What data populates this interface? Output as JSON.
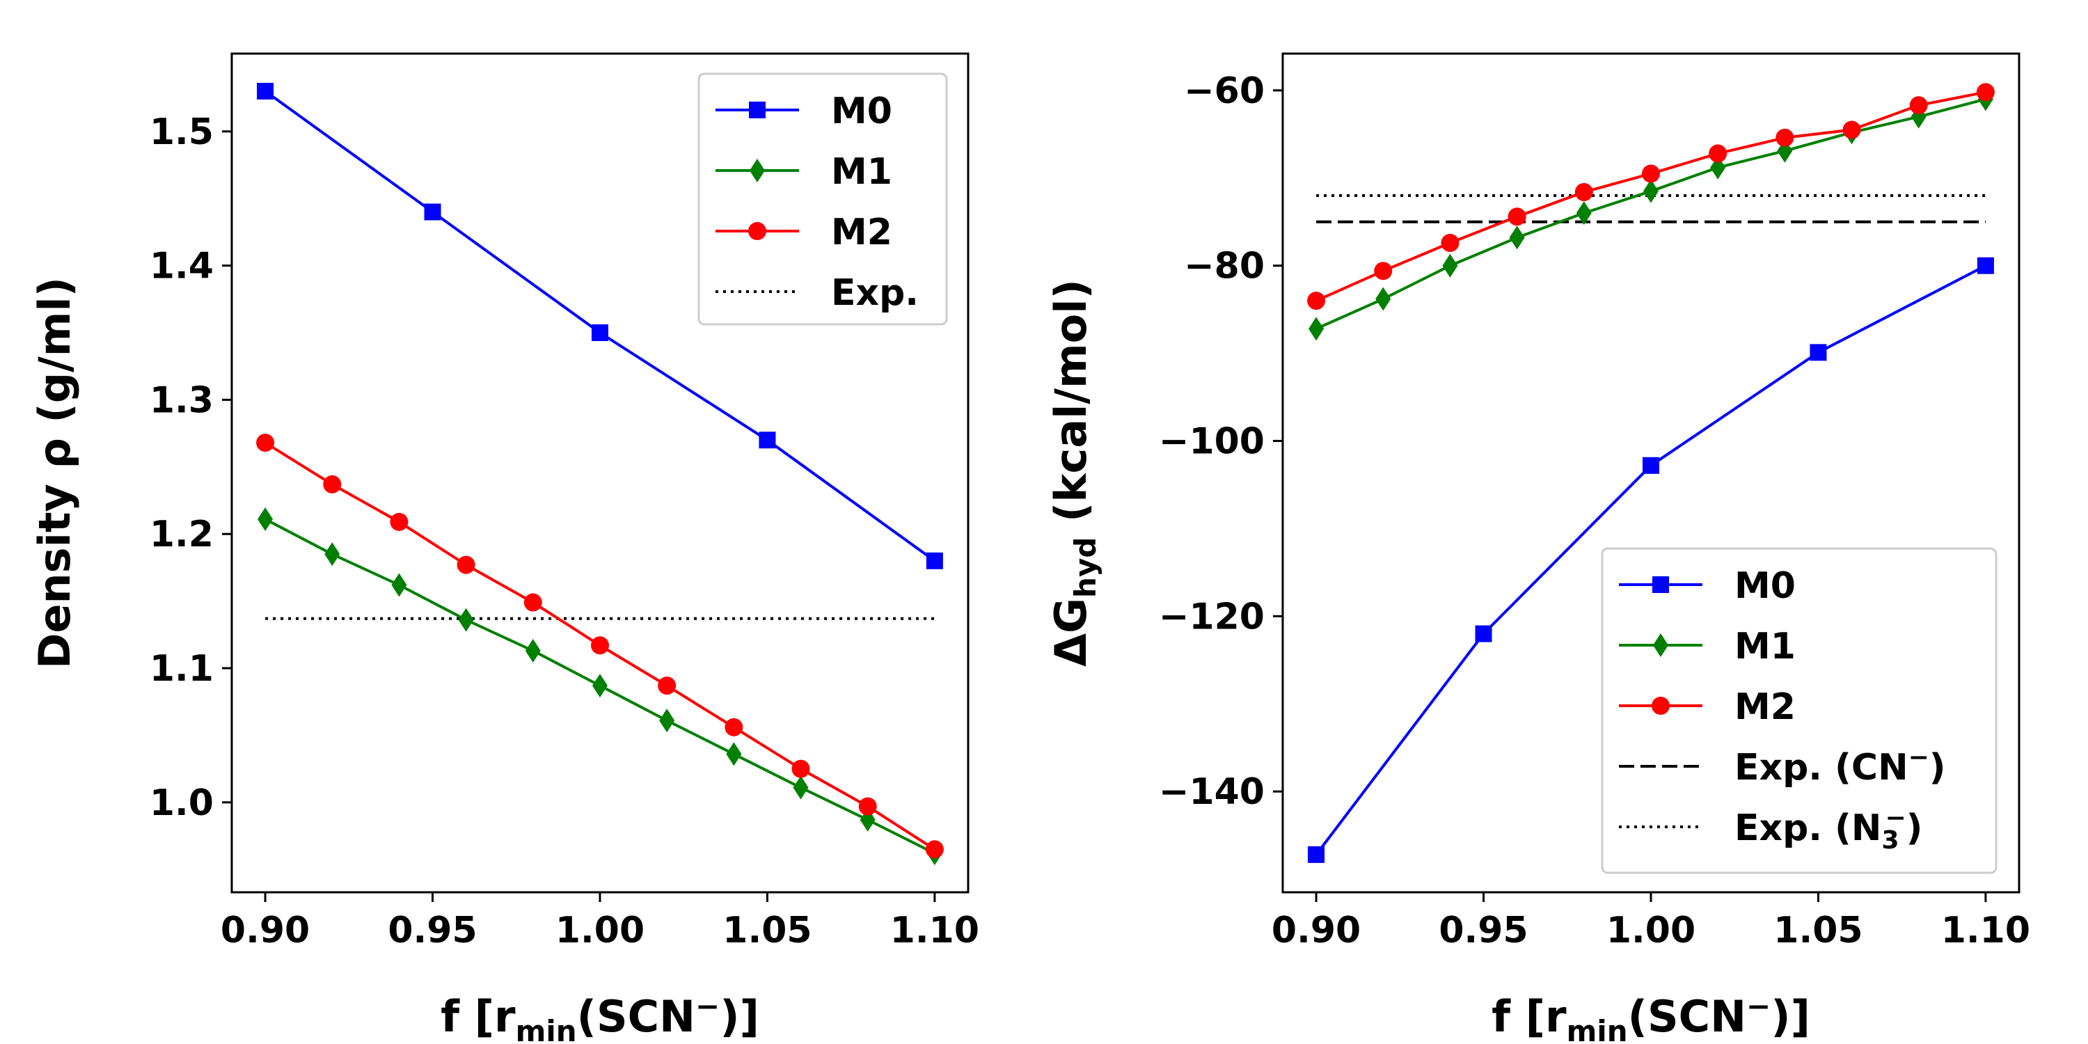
{
  "chart_data": [
    {
      "type": "line",
      "xlabel": {
        "main": "f [r",
        "sub": "min",
        "tail": "(SCN",
        "sup": "−",
        "close": ")]"
      },
      "ylabel": {
        "main": "Density ρ (g/ml)"
      },
      "xlim": [
        0.89,
        1.11
      ],
      "ylim": [
        0.933,
        1.558
      ],
      "xticks": [
        0.9,
        0.95,
        1.0,
        1.05,
        1.1
      ],
      "xtick_labels": [
        "0.90",
        "0.95",
        "1.00",
        "1.05",
        "1.10"
      ],
      "yticks": [
        1.0,
        1.1,
        1.2,
        1.3,
        1.4,
        1.5
      ],
      "ytick_labels": [
        "1.0",
        "1.1",
        "1.2",
        "1.3",
        "1.4",
        "1.5"
      ],
      "legend_position": "top-right",
      "series": [
        {
          "name": "M0",
          "color": "#0000ff",
          "marker": "square",
          "x": [
            0.9,
            0.95,
            1.0,
            1.05,
            1.1
          ],
          "y": [
            1.53,
            1.44,
            1.35,
            1.27,
            1.18
          ]
        },
        {
          "name": "M1",
          "color": "#008000",
          "marker": "diamond",
          "x": [
            0.9,
            0.92,
            0.94,
            0.96,
            0.98,
            1.0,
            1.02,
            1.04,
            1.06,
            1.08,
            1.1
          ],
          "y": [
            1.211,
            1.185,
            1.162,
            1.136,
            1.113,
            1.087,
            1.061,
            1.036,
            1.011,
            0.987,
            0.962
          ]
        },
        {
          "name": "M2",
          "color": "#ff0000",
          "marker": "circle",
          "x": [
            0.9,
            0.92,
            0.94,
            0.96,
            0.98,
            1.0,
            1.02,
            1.04,
            1.06,
            1.08,
            1.1
          ],
          "y": [
            1.268,
            1.237,
            1.209,
            1.177,
            1.149,
            1.117,
            1.087,
            1.056,
            1.025,
            0.997,
            0.965
          ]
        }
      ],
      "reference_lines": [
        {
          "name": "Exp.",
          "y": 1.137,
          "style": "dotted",
          "color": "#000000"
        }
      ]
    },
    {
      "type": "line",
      "xlabel": {
        "main": "f [r",
        "sub": "min",
        "tail": "(SCN",
        "sup": "−",
        "close": ")]"
      },
      "ylabel": {
        "main": "ΔG",
        "sub": "hyd",
        "tail": " (kcal/mol)"
      },
      "xlim": [
        0.89,
        1.11
      ],
      "ylim": [
        -151.5,
        -55.8
      ],
      "xticks": [
        0.9,
        0.95,
        1.0,
        1.05,
        1.1
      ],
      "xtick_labels": [
        "0.90",
        "0.95",
        "1.00",
        "1.05",
        "1.10"
      ],
      "yticks": [
        -140,
        -120,
        -100,
        -80,
        -60
      ],
      "ytick_labels": [
        "−140",
        "−120",
        "−100",
        "−80",
        "−60"
      ],
      "legend_position": "lower-right",
      "series": [
        {
          "name": "M0",
          "color": "#0000ff",
          "marker": "square",
          "x": [
            0.9,
            0.95,
            1.0,
            1.05,
            1.1
          ],
          "y": [
            -147.2,
            -122.0,
            -102.8,
            -89.9,
            -80.0
          ]
        },
        {
          "name": "M1",
          "color": "#008000",
          "marker": "diamond",
          "x": [
            0.9,
            0.92,
            0.94,
            0.96,
            0.98,
            1.0,
            1.02,
            1.04,
            1.06,
            1.08,
            1.1
          ],
          "y": [
            -87.2,
            -83.8,
            -80.0,
            -76.8,
            -74.0,
            -71.5,
            -68.8,
            -66.9,
            -64.8,
            -63.0,
            -61.0
          ]
        },
        {
          "name": "M2",
          "color": "#ff0000",
          "marker": "circle",
          "x": [
            0.9,
            0.92,
            0.94,
            0.96,
            0.98,
            1.0,
            1.02,
            1.04,
            1.06,
            1.08,
            1.1
          ],
          "y": [
            -84.0,
            -80.6,
            -77.4,
            -74.4,
            -71.6,
            -69.5,
            -67.2,
            -65.4,
            -64.5,
            -61.7,
            -60.2
          ]
        }
      ],
      "reference_lines": [
        {
          "name": "Exp. (CN",
          "sup": "−",
          "close": ")",
          "y": -75.0,
          "style": "dashed",
          "color": "#000000"
        },
        {
          "name": "Exp. (N",
          "sub": "3",
          "sup": "−",
          "close": ")",
          "y": -72.0,
          "style": "dotted",
          "color": "#000000"
        }
      ]
    }
  ]
}
